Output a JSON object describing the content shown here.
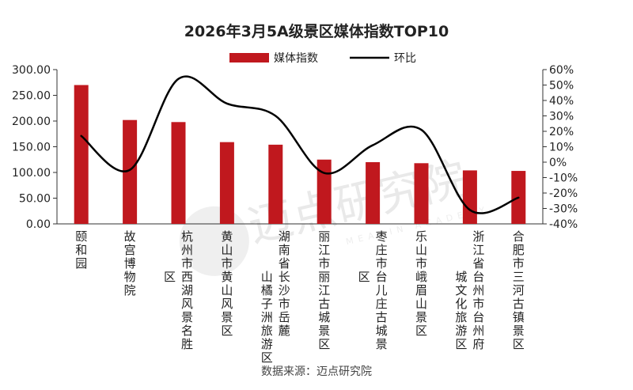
{
  "chart_data": {
    "type": "bar",
    "title": "2026年3月5A级景区媒体指数TOP10",
    "categories": [
      "颐和园",
      "故宫博物院",
      "杭州市西湖风景名胜区",
      "黄山市黄山风景区",
      "湖南省长沙市岳麓山橘子洲旅游区",
      "丽江市丽江古城景区",
      "枣庄市台儿庄古城景区",
      "乐山市峨眉山景区",
      "浙江省台州市台州府城文化旅游区",
      "合肥市三河古镇景区"
    ],
    "category_lines": [
      [
        "颐和园"
      ],
      [
        "故宫博物院"
      ],
      [
        "杭州市西湖风景名胜",
        "区"
      ],
      [
        "黄山市黄山风景区"
      ],
      [
        "湖南省长沙市岳麓",
        "山橘子洲旅游区"
      ],
      [
        "丽江市丽江古城景区"
      ],
      [
        "枣庄市台儿庄古城景",
        "区"
      ],
      [
        "乐山市峨眉山景区"
      ],
      [
        "浙江省台州市台州府",
        "城文化旅游区"
      ],
      [
        "合肥市三河古镇景区"
      ]
    ],
    "series": [
      {
        "name": "媒体指数",
        "type": "bar",
        "axis": "left",
        "color": "#c0181e",
        "values": [
          270,
          202,
          198,
          159,
          154,
          125,
          120,
          118,
          104,
          103
        ]
      },
      {
        "name": "环比",
        "type": "line",
        "axis": "right",
        "color": "#000000",
        "values": [
          17,
          -5,
          54,
          38,
          30,
          -7,
          11,
          21,
          -31,
          -23
        ]
      }
    ],
    "y_left": {
      "min": 0,
      "max": 300,
      "step": 50,
      "ticks": [
        "0.00",
        "50.00",
        "100.00",
        "150.00",
        "200.00",
        "250.00",
        "300.00"
      ]
    },
    "y_right": {
      "min": -40,
      "max": 60,
      "step": 10,
      "ticks": [
        "-40%",
        "-30%",
        "-20%",
        "-10%",
        "0%",
        "10%",
        "20%",
        "30%",
        "40%",
        "50%",
        "60%"
      ]
    },
    "legend_position": "top-center",
    "grid": false
  },
  "source": "数据来源：迈点研究院",
  "watermark": {
    "text": "迈点研究院",
    "sub_text": "MEADIN ACADEMY"
  }
}
